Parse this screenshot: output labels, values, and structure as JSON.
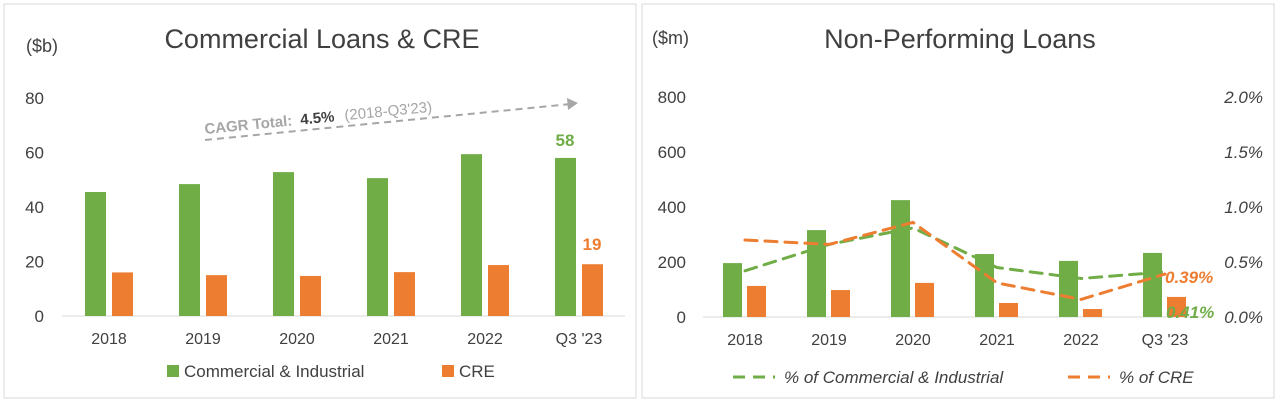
{
  "colors": {
    "green": "#70AD47",
    "orange": "#ED7D31",
    "text": "#404040",
    "cagr": "#A6A6A6"
  },
  "chart_data": [
    {
      "type": "bar",
      "title": "Commercial Loans & CRE",
      "ylabel": "($b)",
      "ylim": [
        0,
        80
      ],
      "yticks": [
        "0",
        "20",
        "40",
        "60",
        "80"
      ],
      "categories": [
        "2018",
        "2019",
        "2020",
        "2021",
        "2022",
        "Q3 '23"
      ],
      "series": [
        {
          "name": "Commercial & Industrial",
          "values": [
            45.5,
            48.4,
            52.8,
            50.6,
            59.4,
            58
          ]
        },
        {
          "name": "CRE",
          "values": [
            16,
            15,
            14.7,
            16.1,
            18.7,
            19
          ]
        }
      ],
      "data_labels": {
        "green": "58",
        "orange": "19"
      },
      "annotation": {
        "label": "CAGR Total:",
        "value": "4.5%",
        "period": "(2018-Q3'23)"
      },
      "legend": "bottom",
      "grid": false
    },
    {
      "type": "bar+line",
      "title": "Non-Performing Loans",
      "ylabel": "($m)",
      "ylim": [
        0,
        800
      ],
      "yticks": [
        "0",
        "200",
        "400",
        "600",
        "800"
      ],
      "y2lim": [
        0,
        2.0
      ],
      "y2ticks": [
        "0.0%",
        "0.5%",
        "1.0%",
        "1.5%",
        "2.0%"
      ],
      "categories": [
        "2018",
        "2019",
        "2020",
        "2021",
        "2022",
        "Q3 '23"
      ],
      "bars": [
        {
          "values": [
            196,
            316,
            425,
            229,
            204,
            233
          ]
        },
        {
          "values": [
            113,
            98,
            124,
            51,
            29,
            73
          ]
        }
      ],
      "lines": [
        {
          "name": "% of Commercial & Industrial",
          "values": [
            0.42,
            0.66,
            0.81,
            0.45,
            0.35,
            0.41
          ]
        },
        {
          "name": "% of CRE",
          "values": [
            0.7,
            0.66,
            0.86,
            0.31,
            0.16,
            0.39
          ]
        }
      ],
      "data_labels": {
        "green": "0.41%",
        "orange": "0.39%"
      },
      "legend": "bottom",
      "grid": false
    }
  ]
}
